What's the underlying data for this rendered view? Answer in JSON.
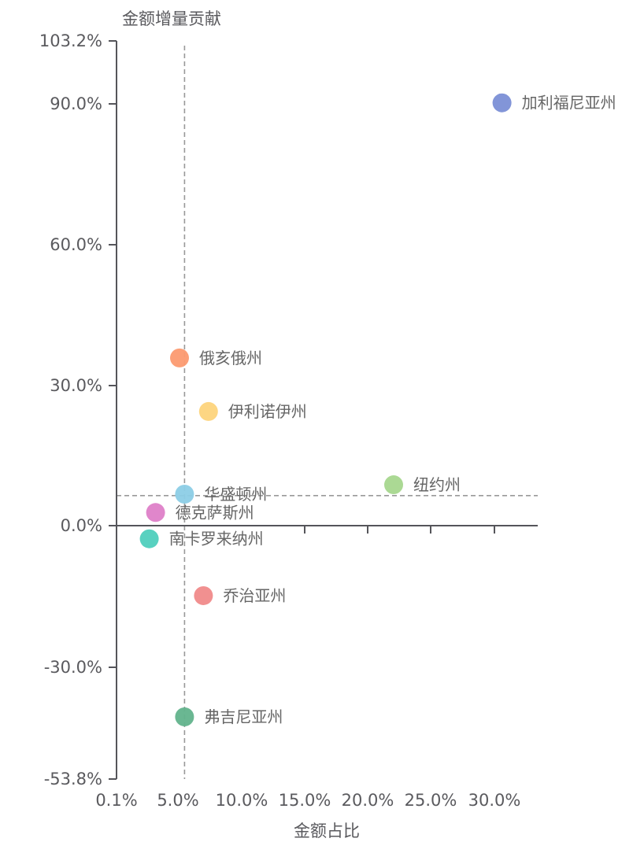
{
  "chart_data": {
    "type": "scatter",
    "title": "",
    "xlabel": "金额占比",
    "ylabel": "金额增量贡献",
    "xlim": [
      0.1,
      33.5
    ],
    "ylim": [
      -53.8,
      103.2
    ],
    "x_ticks": [
      "0.1%",
      "5.0%",
      "10.0%",
      "15.0%",
      "20.0%",
      "25.0%",
      "30.0%"
    ],
    "y_ticks": [
      "103.2%",
      "90.0%",
      "60.0%",
      "30.0%",
      "0.0%",
      "-30.0%",
      "-53.8%"
    ],
    "grid": false,
    "legend": null,
    "reference_lines": {
      "x_mean": 5.5,
      "y_mean": 6.4,
      "style": "dashed",
      "color": "#999999"
    },
    "points": [
      {
        "name": "加利福尼亚州",
        "x": 30.7,
        "y": 90.0,
        "color": "#7b8fd6"
      },
      {
        "name": "俄亥俄州",
        "x": 5.1,
        "y": 35.7,
        "color": "#fc9a70"
      },
      {
        "name": "伊利诺伊州",
        "x": 7.4,
        "y": 24.3,
        "color": "#fdd47c"
      },
      {
        "name": "纽约州",
        "x": 22.1,
        "y": 8.7,
        "color": "#a7d78e"
      },
      {
        "name": "华盛顿州",
        "x": 5.5,
        "y": 6.7,
        "color": "#8ccde6"
      },
      {
        "name": "德克萨斯州",
        "x": 3.2,
        "y": 2.8,
        "color": "#de7fc8"
      },
      {
        "name": "南卡罗来纳州",
        "x": 2.7,
        "y": -2.8,
        "color": "#4fcfbd"
      },
      {
        "name": "乔治亚州",
        "x": 7.0,
        "y": -14.9,
        "color": "#f08a8a"
      },
      {
        "name": "弗吉尼亚州",
        "x": 5.5,
        "y": -40.7,
        "color": "#62b38c"
      }
    ]
  }
}
